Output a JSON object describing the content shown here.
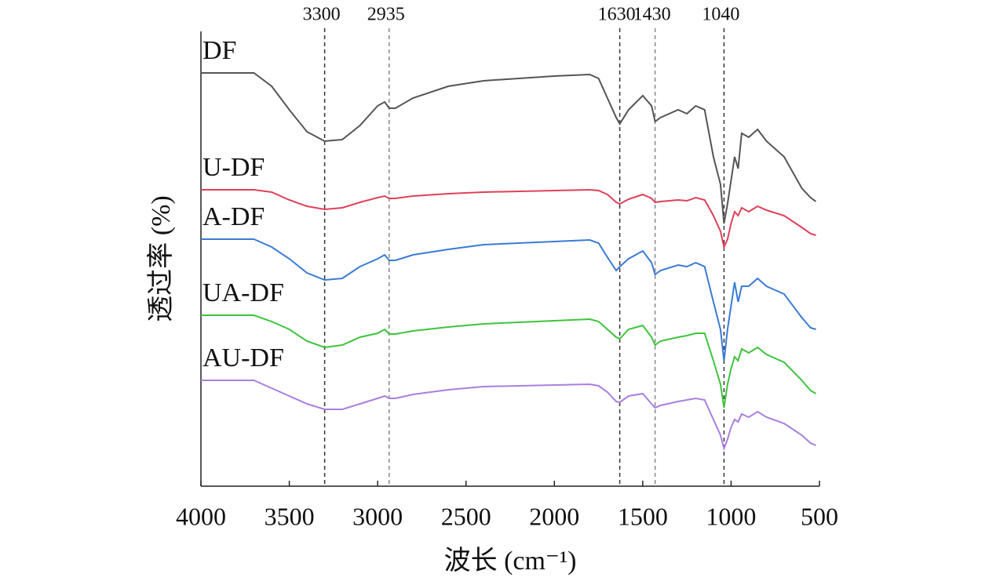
{
  "chart_data": {
    "type": "line",
    "xlabel": "波长 (cm⁻¹)",
    "ylabel": "透过率 (%)",
    "xlim": [
      4000,
      500
    ],
    "xticks": [
      4000,
      3500,
      3000,
      2500,
      2000,
      1500,
      1000,
      500
    ],
    "ylim": [
      0,
      580
    ],
    "vlines": [
      3300,
      2935,
      1630,
      1430,
      1040
    ],
    "x": [
      4000,
      3700,
      3600,
      3500,
      3400,
      3300,
      3200,
      3100,
      3000,
      2960,
      2935,
      2900,
      2800,
      2600,
      2400,
      2000,
      1800,
      1750,
      1700,
      1650,
      1630,
      1580,
      1500,
      1450,
      1430,
      1400,
      1300,
      1250,
      1200,
      1150,
      1100,
      1060,
      1040,
      1020,
      1000,
      980,
      960,
      940,
      900,
      850,
      800,
      700,
      600,
      550,
      520
    ],
    "series": [
      {
        "name": "DF",
        "color": "#555555",
        "values": [
          527,
          527,
          510,
          480,
          452,
          440,
          442,
          460,
          485,
          490,
          482,
          482,
          495,
          510,
          517,
          523,
          525,
          520,
          495,
          470,
          462,
          480,
          498,
          485,
          465,
          470,
          480,
          475,
          485,
          480,
          420,
          385,
          335,
          360,
          390,
          420,
          405,
          450,
          445,
          455,
          440,
          420,
          380,
          368,
          363
        ]
      },
      {
        "name": "U-DF",
        "color": "#e0405a",
        "values": [
          378,
          378,
          375,
          365,
          357,
          353,
          355,
          362,
          368,
          370,
          367,
          367,
          370,
          373,
          375,
          377,
          378,
          377,
          372,
          362,
          360,
          366,
          372,
          367,
          362,
          363,
          365,
          364,
          368,
          365,
          345,
          325,
          305,
          315,
          335,
          350,
          345,
          355,
          350,
          357,
          352,
          345,
          330,
          322,
          320
        ]
      },
      {
        "name": "A-DF",
        "color": "#3a7bd5",
        "values": [
          315,
          315,
          305,
          290,
          272,
          263,
          265,
          280,
          290,
          295,
          288,
          288,
          295,
          302,
          308,
          312,
          314,
          310,
          292,
          275,
          280,
          290,
          300,
          285,
          270,
          275,
          282,
          280,
          285,
          280,
          235,
          200,
          160,
          200,
          230,
          260,
          235,
          255,
          255,
          265,
          255,
          245,
          215,
          202,
          200
        ]
      },
      {
        "name": "UA-DF",
        "color": "#3dc43d",
        "values": [
          218,
          218,
          210,
          200,
          185,
          177,
          180,
          190,
          195,
          200,
          194,
          194,
          198,
          203,
          207,
          211,
          213,
          210,
          200,
          190,
          188,
          200,
          205,
          190,
          180,
          185,
          190,
          192,
          195,
          195,
          160,
          130,
          100,
          130,
          150,
          165,
          160,
          175,
          170,
          177,
          168,
          158,
          135,
          122,
          118
        ]
      },
      {
        "name": "AU-DF",
        "color": "#a97fe0",
        "values": [
          135,
          135,
          125,
          115,
          105,
          98,
          98,
          105,
          112,
          115,
          112,
          112,
          117,
          123,
          127,
          129,
          130,
          128,
          120,
          108,
          107,
          115,
          118,
          105,
          100,
          103,
          108,
          110,
          112,
          110,
          85,
          65,
          48,
          60,
          75,
          85,
          82,
          92,
          88,
          95,
          88,
          80,
          65,
          55,
          52
        ]
      }
    ]
  }
}
